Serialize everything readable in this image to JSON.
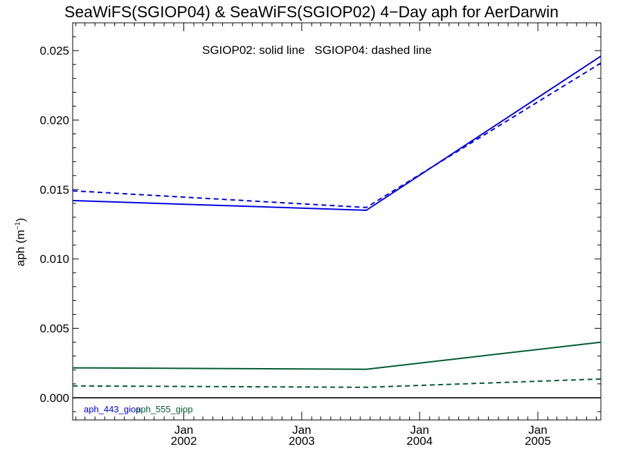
{
  "chart_data": {
    "type": "line",
    "title": "SeaWiFS(SGIOP04) & SeaWiFS(SGIOP02) 4−Day aph for AerDarwin",
    "ylabel": "aph (m",
    "ylabel_exponent": "−1",
    "ylabel_close": ")",
    "annotation": {
      "solid": "SGIOP02: solid line",
      "dashed": "SGIOP04: dashed line"
    },
    "xlim": [
      "2001-01-22",
      "2005-07-15"
    ],
    "ylim": [
      -0.0016,
      0.027
    ],
    "xticks": [
      {
        "date": "2002-01-01",
        "label_top": "Jan",
        "label_bottom": "2002"
      },
      {
        "date": "2003-01-01",
        "label_top": "Jan",
        "label_bottom": "2003"
      },
      {
        "date": "2004-01-01",
        "label_top": "Jan",
        "label_bottom": "2004"
      },
      {
        "date": "2005-01-01",
        "label_top": "Jan",
        "label_bottom": "2005"
      }
    ],
    "yticks": [
      "0.000",
      "0.005",
      "0.010",
      "0.015",
      "0.020",
      "0.025"
    ],
    "zero_line": true,
    "grid": false,
    "series": [
      {
        "name": "aph_443_giop",
        "product": "SGIOP02",
        "style": "solid",
        "color": "#0000e0",
        "x": [
          "2001-01-22",
          "2003-07-20",
          "2005-07-15"
        ],
        "y": [
          0.0142,
          0.0135,
          0.0246
        ]
      },
      {
        "name": "aph_443_giop",
        "product": "SGIOP04",
        "style": "dashed",
        "color": "#0000e0",
        "x": [
          "2001-01-22",
          "2003-07-20",
          "2005-07-15"
        ],
        "y": [
          0.0149,
          0.0137,
          0.0241
        ]
      },
      {
        "name": "aph_555_giop",
        "product": "SGIOP02",
        "style": "solid",
        "color": "#005a2e",
        "x": [
          "2001-01-22",
          "2003-07-20",
          "2005-07-15"
        ],
        "y": [
          0.00215,
          0.00205,
          0.004
        ]
      },
      {
        "name": "aph_555_giop",
        "product": "SGIOP04",
        "style": "dashed",
        "color": "#005a2e",
        "x": [
          "2001-01-22",
          "2003-07-20",
          "2005-07-15"
        ],
        "y": [
          0.00085,
          0.00075,
          0.00135
        ]
      }
    ],
    "legend": [
      {
        "label": "aph_443_giop",
        "color": "#0000e0"
      },
      {
        "label": "aph_555_giop",
        "color": "#005a2e"
      }
    ]
  }
}
